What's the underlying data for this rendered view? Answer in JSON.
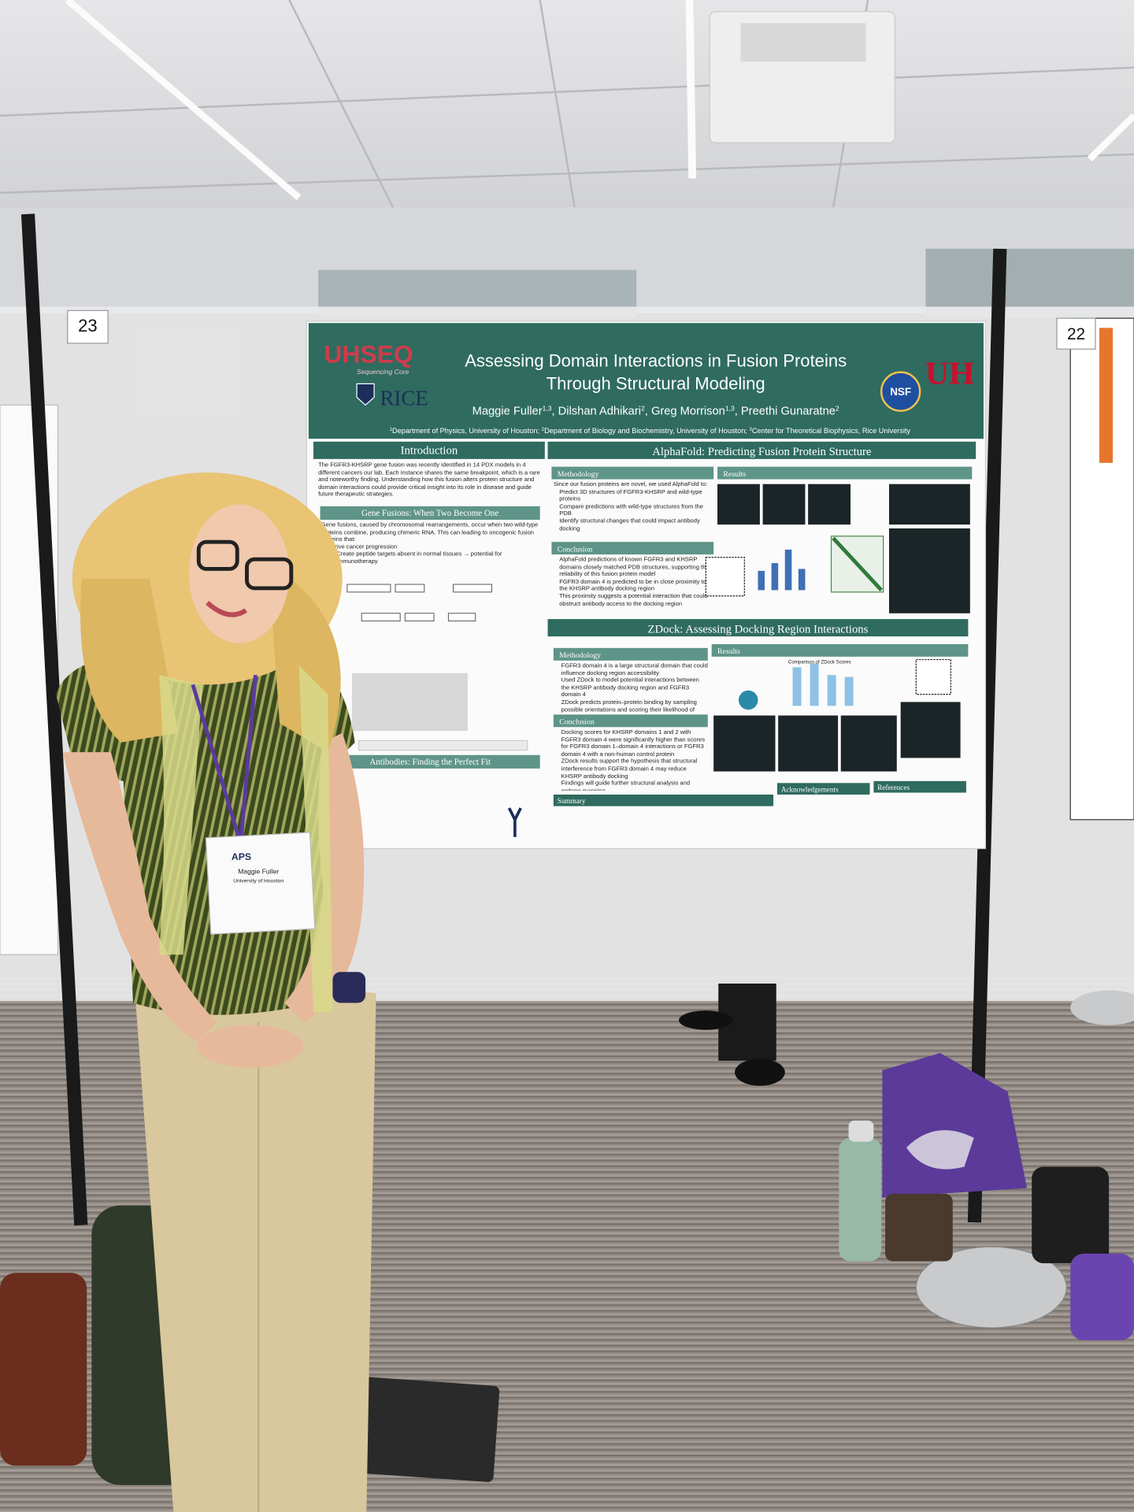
{
  "board_numbers": [
    "23",
    "22"
  ],
  "poster": {
    "logos": {
      "uhseq": "UHSEQ",
      "uhseq_sub": "Sequencing Core",
      "rice": "RICE",
      "nsf": "NSF",
      "uh": "UH"
    },
    "title_lines": [
      "Assessing Domain Interactions in Fusion Proteins",
      "Through Structural Modeling"
    ],
    "authors": [
      {
        "name": "Maggie Fuller",
        "affil": "1,3"
      },
      {
        "name": "Dilshan Adhikari",
        "affil": "2"
      },
      {
        "name": "Greg Morrison",
        "affil": "1,3"
      },
      {
        "name": "Preethi Gunaratne",
        "affil": "2"
      }
    ],
    "affiliations": [
      {
        "num": "1",
        "text": "Department of Physics, University of Houston;"
      },
      {
        "num": "2",
        "text": "Department of Biology and Biochemistry, University of Houston;"
      },
      {
        "num": "3",
        "text": "Center for Theoretical Biophysics, Rice University"
      }
    ],
    "introduction": {
      "heading": "Introduction",
      "text": "The FGFR3-KHSRP gene fusion was recently identified in 14 PDX models in 4 different cancers our lab. Each instance shares the same breakpoint, which is a rare and noteworthy finding. Understanding how this fusion alters protein structure and domain interactions could provide critical insight into its role in disease and guide future therapeutic strategies."
    },
    "gene_fusions": {
      "heading": "Gene Fusions: When Two Become One",
      "text": "Gene fusions, caused by chromosomal rearrangements, occur when two wild-type proteins combine, producing chimeric RNA. This can leading to oncogenic fusion proteins that:",
      "bullets": [
        "Drive cancer progression",
        "Create peptide targets absent in normal tissues → potential for immunotherapy"
      ]
    },
    "antibodies": {
      "heading": "Antibodies: Finding the Perfect Fit"
    },
    "alphafold": {
      "heading": "AlphaFold: Predicting Fusion Protein Structure",
      "methodology": "Methodology",
      "methodology_text": "Since our fusion proteins are novel, we used AlphaFold to:",
      "methodology_bullets": [
        "Predict 3D structures of FGFR3-KHSRP and wild-type proteins",
        "Compare predictions with wild-type structures from the PDB",
        "Identify structural changes that could impact antibody docking"
      ],
      "results": "Results",
      "conclusion": "Conclusion",
      "conclusion_bullets": [
        "AlphaFold predictions of known FGFR3 and KHSRP domains closely matched PDB structures, supporting the reliability of this fusion protein model",
        "FGFR3 domain 4 is predicted to be in close proximity to the KHSRP antibody docking region",
        "This proximity suggests a potential interaction that could obstruct antibody access to the docking region"
      ]
    },
    "zdock": {
      "heading": "ZDock: Assessing Docking Region Interactions",
      "methodology": "Methodology",
      "methodology_bullets": [
        "FGFR3 domain 4 is a large structural domain that could influence docking region accessibility",
        "Used ZDock to model potential interactions between the KHSRP antibody docking region and FGFR3 domain 4",
        "ZDock predicts protein–protein binding by sampling possible orientations and scoring their likelihood of interaction"
      ],
      "results": "Results",
      "chart_title": "Comparison of ZDock Scores",
      "conclusion": "Conclusion",
      "conclusion_bullets": [
        "Docking scores for KHSRP domains 1 and 2 with FGFR3 domain 4 were significantly higher than scores for FGFR3 domain 1–domain 4 interactions or FGFR3 domain 4 with a non-human control protein",
        "ZDock results support the hypothesis that structural interference from FGFR3 domain 4 may reduce KHSRP antibody docking",
        "Findings will guide further structural analysis and epitope mapping"
      ]
    },
    "summary": {
      "heading": "Summary"
    },
    "acknowledgements": {
      "heading": "Acknowledgements"
    },
    "references": {
      "heading": "References"
    }
  },
  "badge": {
    "org": "APS",
    "name": "Maggie Fuller",
    "affiliation": "University of Houston"
  }
}
